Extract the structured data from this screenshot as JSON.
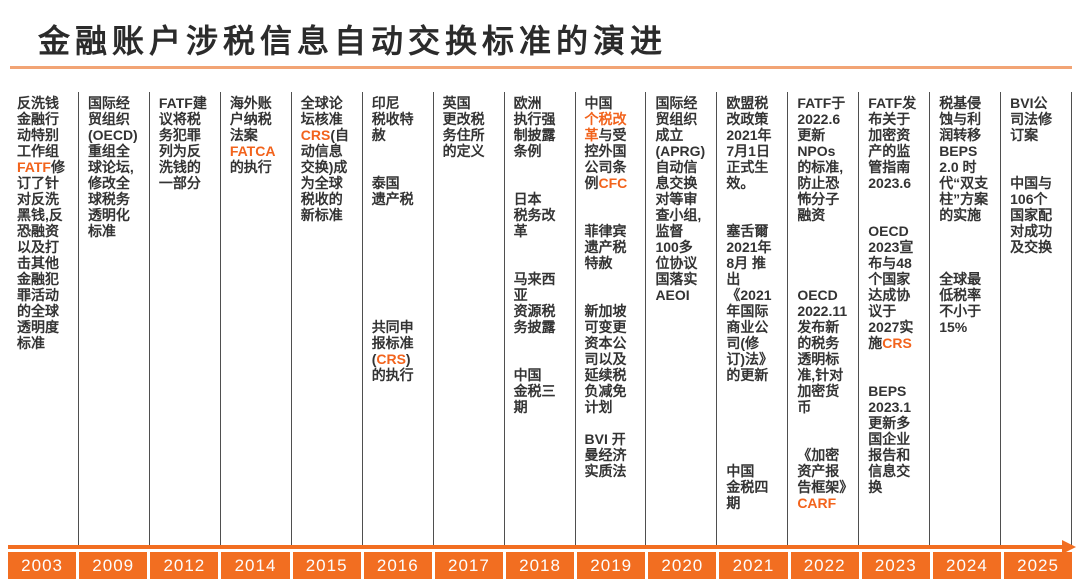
{
  "title": "金融账户涉税信息自动交换标准的演进",
  "accent_color": "#f2631c",
  "bar_color": "#f26e21",
  "underline_color": "#f2a475",
  "timeline": {
    "columns": [
      {
        "year": "2003",
        "blocks": [
          {
            "gap": 0,
            "segments": [
              {
                "text": "反洗钱金融行动特别工作组"
              },
              {
                "text": "FATF",
                "style": "accent"
              },
              {
                "text": "修订了针对反洗黑钱,反恐融资以及打击其他金融犯罪活动的全球透明度标准"
              }
            ]
          }
        ]
      },
      {
        "year": "2009",
        "blocks": [
          {
            "gap": 0,
            "segments": [
              {
                "text": "国际经贸组织(OECD)重组全球论坛,修改全球税务透明化标准"
              }
            ]
          }
        ]
      },
      {
        "year": "2012",
        "blocks": [
          {
            "gap": 0,
            "segments": [
              {
                "text": "FATF建议将税务犯罪列为反洗钱的一部分"
              }
            ]
          }
        ]
      },
      {
        "year": "2014",
        "blocks": [
          {
            "gap": 0,
            "segments": [
              {
                "text": "海外账户纳税法案"
              },
              {
                "text": "FATCA",
                "style": "accent"
              },
              {
                "text": "的执行"
              }
            ]
          }
        ]
      },
      {
        "year": "2015",
        "blocks": [
          {
            "gap": 0,
            "segments": [
              {
                "text": "全球论坛核准"
              },
              {
                "text": "CRS",
                "style": "accent"
              },
              {
                "text": "(自动信息交换)成为全球税收的新标准"
              }
            ]
          }
        ]
      },
      {
        "year": "2016",
        "blocks": [
          {
            "gap": 0,
            "segments": [
              {
                "text": "印尼\n税收特赦"
              }
            ]
          },
          {
            "gap": 2,
            "segments": [
              {
                "text": "泰国\n遗产税"
              }
            ]
          },
          {
            "gap": 7,
            "segments": [
              {
                "text": "共同申报标准("
              },
              {
                "text": "CRS",
                "style": "accent"
              },
              {
                "text": ")的执行"
              }
            ]
          }
        ]
      },
      {
        "year": "2017",
        "blocks": [
          {
            "gap": 0,
            "segments": [
              {
                "text": "英国\n更改税务住所的定义"
              }
            ]
          }
        ]
      },
      {
        "year": "2018",
        "blocks": [
          {
            "gap": 0,
            "segments": [
              {
                "text": "欧洲\n执行强制披露条例"
              }
            ]
          },
          {
            "gap": 2,
            "segments": [
              {
                "text": "日本\n税务改革"
              }
            ]
          },
          {
            "gap": 2,
            "segments": [
              {
                "text": "马来西亚\n资源税务披露"
              }
            ]
          },
          {
            "gap": 2,
            "segments": [
              {
                "text": "中国\n金税三期"
              }
            ]
          }
        ]
      },
      {
        "year": "2019",
        "blocks": [
          {
            "gap": 0,
            "segments": [
              {
                "text": "中国\n"
              },
              {
                "text": "个税改革",
                "style": "accent"
              },
              {
                "text": "与受控外国公司条例"
              },
              {
                "text": "CFC",
                "style": "accent"
              }
            ]
          },
          {
            "gap": 2,
            "segments": [
              {
                "text": "菲律宾遗产税特赦"
              }
            ]
          },
          {
            "gap": 2,
            "segments": [
              {
                "text": "新加坡可变更资本公司以及延续税负减免计划"
              }
            ]
          },
          {
            "gap": 1,
            "segments": [
              {
                "text": "BVI 开曼经济实质法"
              }
            ]
          }
        ]
      },
      {
        "year": "2020",
        "blocks": [
          {
            "gap": 0,
            "segments": [
              {
                "text": "国际经贸组织成立\n(APRG)自动信息交换对等审查小组,监督100多位协议国落实AEOI"
              }
            ]
          }
        ]
      },
      {
        "year": "2021",
        "blocks": [
          {
            "gap": 0,
            "segments": [
              {
                "text": "欧盟税改政策2021年7月1日正式生效。"
              }
            ]
          },
          {
            "gap": 2,
            "segments": [
              {
                "text": "塞舌爾2021年8月 推出\n《2021年国际商业公司(修订)法》的更新"
              }
            ]
          },
          {
            "gap": 5,
            "segments": [
              {
                "text": "中国\n金税四期"
              }
            ]
          }
        ]
      },
      {
        "year": "2022",
        "blocks": [
          {
            "gap": 0,
            "segments": [
              {
                "text": "FATF于2022.6更新NPOs的标准,防止恐怖分子融资"
              }
            ]
          },
          {
            "gap": 4,
            "segments": [
              {
                "text": "OECD\n2022.11发布新的税务透明标准,针对加密货币"
              }
            ]
          },
          {
            "gap": 2,
            "segments": [
              {
                "text": "《加密资产报告框架》",
                "style": "bold"
              },
              {
                "text": "CARF",
                "style": "accent"
              }
            ]
          }
        ]
      },
      {
        "year": "2023",
        "blocks": [
          {
            "gap": 0,
            "segments": [
              {
                "text": "FATF发布关于加密资产的监管指南2023.6"
              }
            ]
          },
          {
            "gap": 2,
            "segments": [
              {
                "text": "OECD\n2023宣布与48个国家达成协议于2027实施"
              },
              {
                "text": "CRS",
                "style": "accent"
              }
            ]
          },
          {
            "gap": 2,
            "segments": [
              {
                "text": "BEPS\n2023.1更新多国企业报告和信息交换"
              }
            ]
          }
        ]
      },
      {
        "year": "2024",
        "blocks": [
          {
            "gap": 0,
            "segments": [
              {
                "text": "税基侵蚀与利润转移BEPS 2.0 时代“双支柱”方案的实施"
              }
            ]
          },
          {
            "gap": 3,
            "segments": [
              {
                "text": "全球最低税率不小于15%"
              }
            ]
          }
        ]
      },
      {
        "year": "2025",
        "blocks": [
          {
            "gap": 0,
            "segments": [
              {
                "text": "BVI公司法修订案",
                "style": "bold"
              }
            ]
          },
          {
            "gap": 2,
            "segments": [
              {
                "text": "中国与106个国家配对成功及交换"
              }
            ]
          }
        ]
      }
    ]
  }
}
